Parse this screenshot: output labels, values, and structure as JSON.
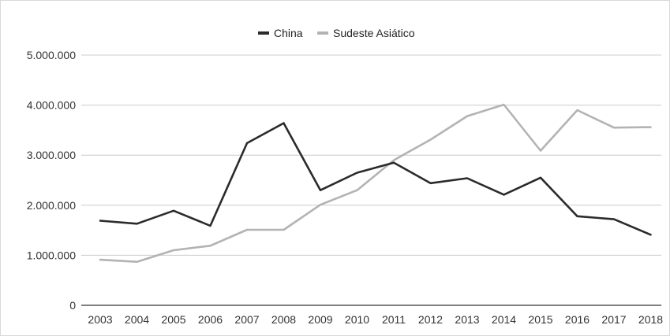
{
  "chart_data": {
    "type": "line",
    "title": "",
    "xlabel": "",
    "ylabel": "",
    "x": [
      "2003",
      "2004",
      "2005",
      "2006",
      "2007",
      "2008",
      "2009",
      "2010",
      "2011",
      "2012",
      "2013",
      "2014",
      "2015",
      "2016",
      "2017",
      "2018"
    ],
    "series": [
      {
        "name": "China",
        "color": "#2b2b2b",
        "values": [
          1690000,
          1630000,
          1890000,
          1590000,
          3240000,
          3640000,
          2300000,
          2650000,
          2850000,
          2440000,
          2540000,
          2210000,
          2550000,
          1780000,
          1720000,
          1410000
        ]
      },
      {
        "name": "Sudeste Asiático",
        "color": "#b3b3b3",
        "values": [
          910000,
          870000,
          1100000,
          1190000,
          1510000,
          1510000,
          2010000,
          2300000,
          2900000,
          3310000,
          3780000,
          4010000,
          3090000,
          3900000,
          3550000,
          3560000
        ]
      }
    ],
    "ylim": [
      0,
      5000000
    ],
    "y_ticks": [
      "0",
      "1.000.000",
      "2.000.000",
      "3.000.000",
      "4.000.000",
      "5.000.000"
    ],
    "grid": true,
    "legend_position": "top-center"
  }
}
